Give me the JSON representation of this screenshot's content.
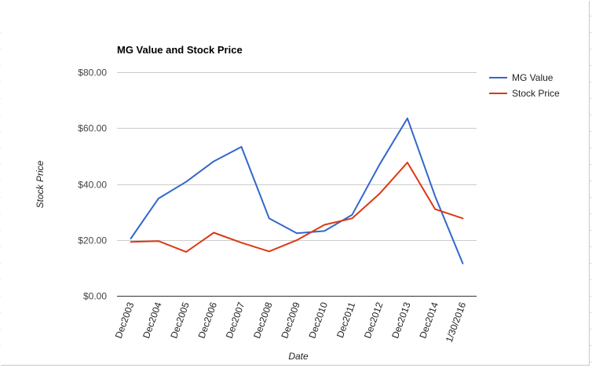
{
  "chart_data": {
    "type": "line",
    "title": "MG Value and Stock Price",
    "xlabel": "Date",
    "ylabel": "Stock Price",
    "categories": [
      "Dec2003",
      "Dec2004",
      "Dec2005",
      "Dec2006",
      "Dec2007",
      "Dec2008",
      "Dec2009",
      "Dec2010",
      "Dec2011",
      "Dec2012",
      "Dec2013",
      "Dec2014",
      "1/30/2016"
    ],
    "ylim": [
      0,
      80
    ],
    "yticks": [
      0,
      20,
      40,
      60,
      80
    ],
    "ytick_labels": [
      "$0.00",
      "$20.00",
      "$40.00",
      "$60.00",
      "$80.00"
    ],
    "grid": true,
    "legend_position": "right",
    "series": [
      {
        "name": "MG Value",
        "color": "#3366cc",
        "values": [
          20.5,
          34.8,
          40.8,
          48.1,
          53.3,
          27.7,
          22.4,
          23.2,
          29.0,
          47.1,
          63.5,
          35.6,
          11.6
        ]
      },
      {
        "name": "Stock Price",
        "color": "#dc3912",
        "values": [
          19.3,
          19.6,
          15.7,
          22.6,
          19.0,
          15.9,
          19.9,
          25.4,
          27.7,
          36.6,
          47.7,
          31.0,
          27.7
        ]
      }
    ]
  }
}
